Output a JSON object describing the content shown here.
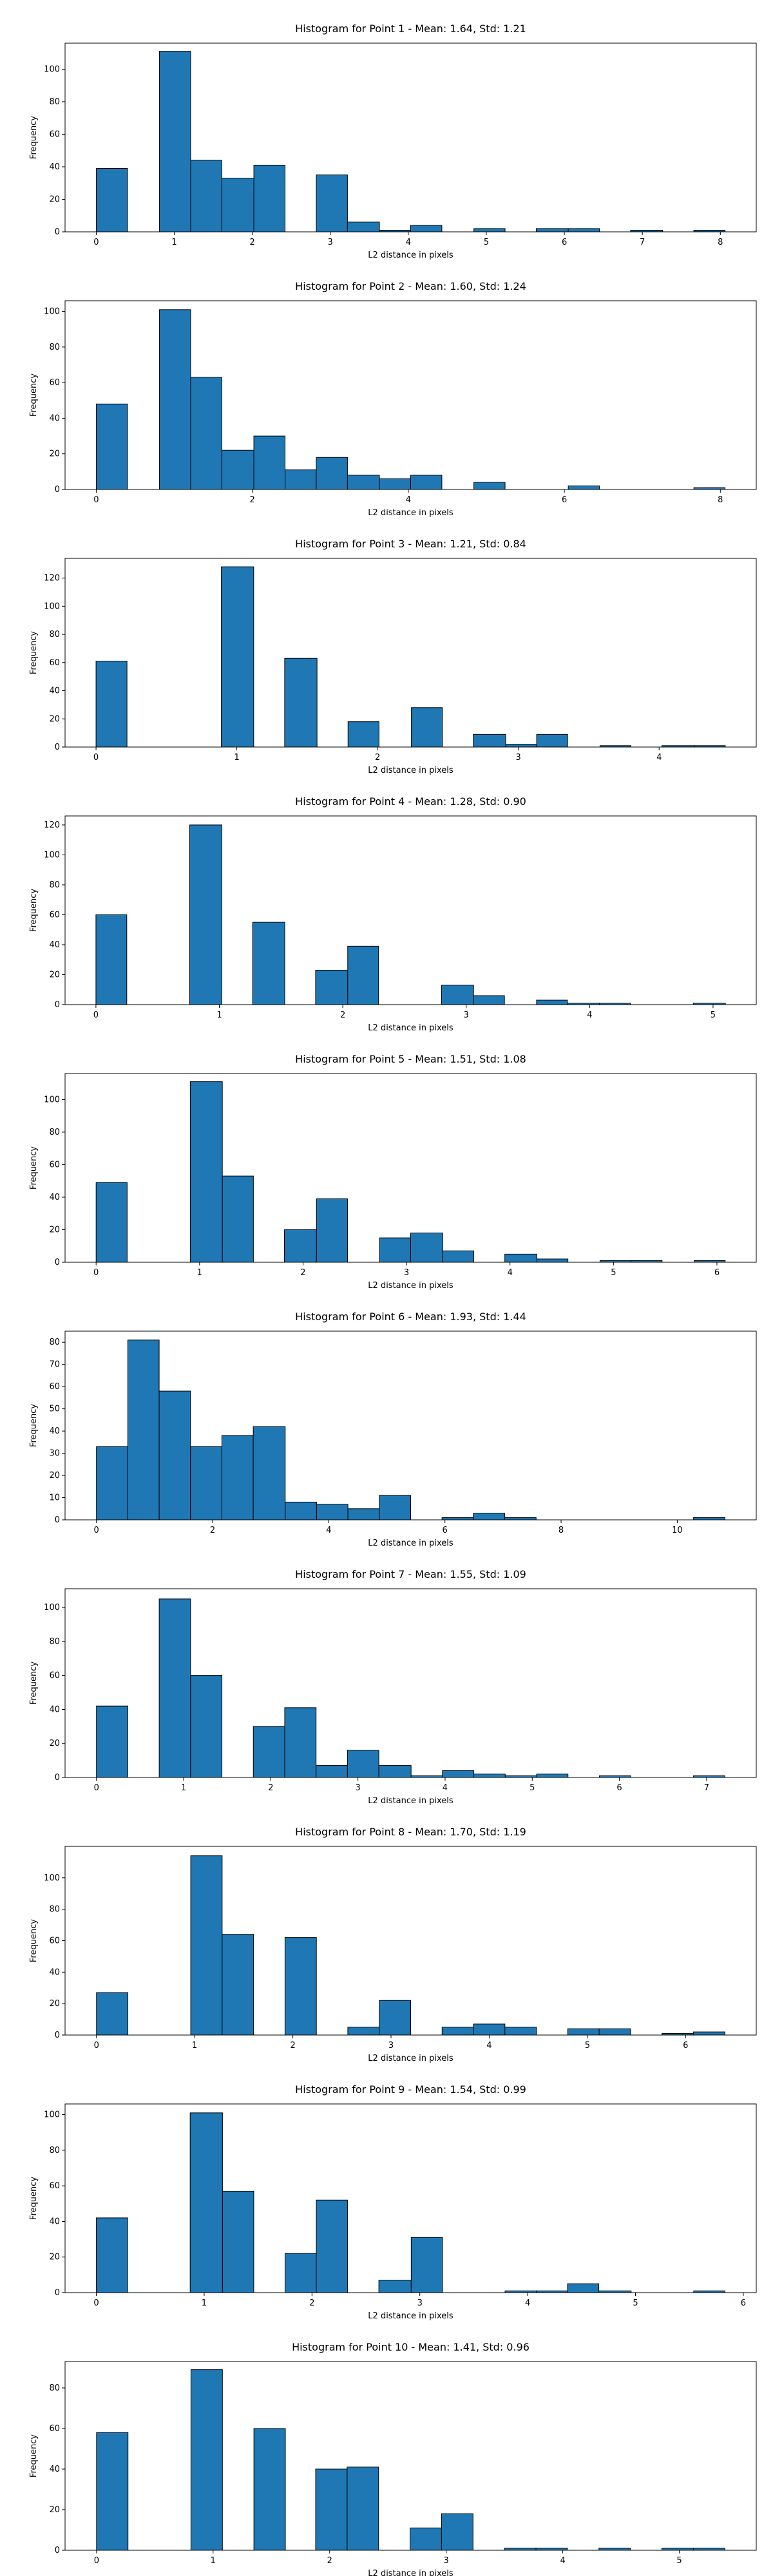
{
  "chart_data": [
    {
      "type": "histogram",
      "title": "Histogram for Point 1 - Mean: 1.64, Std: 1.21",
      "xlabel": "L2 distance in pixels",
      "ylabel": "Frequency",
      "color": "#1f77b4",
      "bins": [
        0,
        0.4,
        0.81,
        1.21,
        1.61,
        2.02,
        2.42,
        2.82,
        3.22,
        3.63,
        4.03,
        4.43,
        4.84,
        5.24,
        5.64,
        6.05,
        6.45,
        6.85,
        7.26,
        7.66,
        8.06
      ],
      "values": [
        39,
        0,
        111,
        44,
        33,
        41,
        0,
        35,
        6,
        1,
        4,
        0,
        2,
        0,
        2,
        2,
        0,
        1,
        0,
        1
      ],
      "xlim": [
        -0.4,
        8.46
      ],
      "ylim": [
        0,
        116
      ],
      "xticks": [
        0,
        1,
        2,
        3,
        4,
        5,
        6,
        7,
        8
      ],
      "yticks": [
        0,
        20,
        40,
        60,
        80,
        100
      ]
    },
    {
      "type": "histogram",
      "title": "Histogram for Point 2 - Mean: 1.60, Std: 1.24",
      "xlabel": "L2 distance in pixels",
      "ylabel": "Frequency",
      "color": "#1f77b4",
      "bins": [
        0,
        0.4,
        0.81,
        1.21,
        1.61,
        2.02,
        2.42,
        2.82,
        3.22,
        3.63,
        4.03,
        4.43,
        4.84,
        5.24,
        5.64,
        6.05,
        6.45,
        6.85,
        7.26,
        7.66,
        8.06
      ],
      "values": [
        48,
        0,
        101,
        63,
        22,
        30,
        11,
        18,
        8,
        6,
        8,
        0,
        4,
        0,
        0,
        2,
        0,
        0,
        0,
        1
      ],
      "xlim": [
        -0.4,
        8.46
      ],
      "ylim": [
        0,
        106
      ],
      "xticks": [
        0,
        2,
        4,
        6,
        8
      ],
      "yticks": [
        0,
        20,
        40,
        60,
        80,
        100
      ]
    },
    {
      "type": "histogram",
      "title": "Histogram for Point 3 - Mean: 1.21, Std: 0.84",
      "xlabel": "L2 distance in pixels",
      "ylabel": "Frequency",
      "color": "#1f77b4",
      "bins": [
        0,
        0.22,
        0.45,
        0.67,
        0.89,
        1.12,
        1.34,
        1.57,
        1.79,
        2.01,
        2.24,
        2.46,
        2.68,
        2.91,
        3.13,
        3.35,
        3.58,
        3.8,
        4.02,
        4.25,
        4.47
      ],
      "values": [
        61,
        0,
        0,
        0,
        128,
        0,
        63,
        0,
        18,
        0,
        28,
        0,
        9,
        2,
        9,
        0,
        1,
        0,
        1,
        1
      ],
      "xlim": [
        -0.22,
        4.69
      ],
      "ylim": [
        0,
        134
      ],
      "xticks": [
        0,
        1,
        2,
        3,
        4
      ],
      "yticks": [
        0,
        20,
        40,
        60,
        80,
        100,
        120
      ]
    },
    {
      "type": "histogram",
      "title": "Histogram for Point 4 - Mean: 1.28, Std: 0.90",
      "xlabel": "L2 distance in pixels",
      "ylabel": "Frequency",
      "color": "#1f77b4",
      "bins": [
        0,
        0.25,
        0.51,
        0.76,
        1.02,
        1.27,
        1.53,
        1.78,
        2.04,
        2.29,
        2.55,
        2.8,
        3.06,
        3.31,
        3.57,
        3.82,
        4.08,
        4.33,
        4.59,
        4.84,
        5.1
      ],
      "values": [
        60,
        0,
        0,
        120,
        0,
        55,
        0,
        23,
        39,
        0,
        0,
        13,
        6,
        0,
        3,
        1,
        1,
        0,
        0,
        1
      ],
      "xlim": [
        -0.25,
        5.35
      ],
      "ylim": [
        0,
        126
      ],
      "xticks": [
        0,
        1,
        2,
        3,
        4,
        5
      ],
      "yticks": [
        0,
        20,
        40,
        60,
        80,
        100,
        120
      ]
    },
    {
      "type": "histogram",
      "title": "Histogram for Point 5 - Mean: 1.51, Std: 1.08",
      "xlabel": "L2 distance in pixels",
      "ylabel": "Frequency",
      "color": "#1f77b4",
      "bins": [
        0,
        0.3,
        0.61,
        0.91,
        1.22,
        1.52,
        1.82,
        2.13,
        2.43,
        2.74,
        3.04,
        3.35,
        3.65,
        3.95,
        4.26,
        4.56,
        4.87,
        5.17,
        5.47,
        5.78,
        6.08
      ],
      "values": [
        49,
        0,
        0,
        111,
        53,
        0,
        20,
        39,
        0,
        15,
        18,
        7,
        0,
        5,
        2,
        0,
        1,
        1,
        0,
        1
      ],
      "xlim": [
        -0.3,
        6.38
      ],
      "ylim": [
        0,
        116
      ],
      "xticks": [
        0,
        1,
        2,
        3,
        4,
        5,
        6
      ],
      "yticks": [
        0,
        20,
        40,
        60,
        80,
        100
      ]
    },
    {
      "type": "histogram",
      "title": "Histogram for Point 6 - Mean: 1.93, Std: 1.44",
      "xlabel": "L2 distance in pixels",
      "ylabel": "Frequency",
      "color": "#1f77b4",
      "bins": [
        0,
        0.54,
        1.08,
        1.62,
        2.16,
        2.7,
        3.25,
        3.79,
        4.33,
        4.87,
        5.41,
        5.95,
        6.49,
        7.03,
        7.57,
        8.11,
        8.65,
        9.19,
        9.74,
        10.28,
        10.82
      ],
      "values": [
        33,
        81,
        58,
        33,
        38,
        42,
        8,
        7,
        5,
        11,
        0,
        1,
        3,
        1,
        0,
        0,
        0,
        0,
        0,
        1
      ],
      "xlim": [
        -0.54,
        11.36
      ],
      "ylim": [
        0,
        85
      ],
      "xticks": [
        0,
        2,
        4,
        6,
        8,
        10
      ],
      "yticks": [
        0,
        10,
        20,
        30,
        40,
        50,
        60,
        70,
        80
      ]
    },
    {
      "type": "histogram",
      "title": "Histogram for Point 7 - Mean: 1.55, Std: 1.09",
      "xlabel": "L2 distance in pixels",
      "ylabel": "Frequency",
      "color": "#1f77b4",
      "bins": [
        0,
        0.36,
        0.72,
        1.08,
        1.44,
        1.8,
        2.16,
        2.52,
        2.88,
        3.24,
        3.61,
        3.97,
        4.33,
        4.69,
        5.05,
        5.41,
        5.77,
        6.13,
        6.49,
        6.85,
        7.21
      ],
      "values": [
        42,
        0,
        105,
        60,
        0,
        30,
        41,
        7,
        16,
        7,
        1,
        4,
        2,
        1,
        2,
        0,
        1,
        0,
        0,
        1
      ],
      "xlim": [
        -0.36,
        7.57
      ],
      "ylim": [
        0,
        111
      ],
      "xticks": [
        0,
        1,
        2,
        3,
        4,
        5,
        6,
        7
      ],
      "yticks": [
        0,
        20,
        40,
        60,
        80,
        100
      ]
    },
    {
      "type": "histogram",
      "title": "Histogram for Point 8 - Mean: 1.70, Std: 1.19",
      "xlabel": "L2 distance in pixels",
      "ylabel": "Frequency",
      "color": "#1f77b4",
      "bins": [
        0,
        0.32,
        0.64,
        0.96,
        1.28,
        1.6,
        1.92,
        2.24,
        2.56,
        2.88,
        3.2,
        3.52,
        3.84,
        4.16,
        4.48,
        4.8,
        5.12,
        5.44,
        5.76,
        6.08,
        6.4
      ],
      "values": [
        27,
        0,
        0,
        114,
        64,
        0,
        62,
        0,
        5,
        22,
        0,
        5,
        7,
        5,
        0,
        4,
        4,
        0,
        1,
        2
      ],
      "xlim": [
        -0.32,
        6.72
      ],
      "ylim": [
        0,
        120
      ],
      "xticks": [
        0,
        1,
        2,
        3,
        4,
        5,
        6
      ],
      "yticks": [
        0,
        20,
        40,
        60,
        80,
        100
      ]
    },
    {
      "type": "histogram",
      "title": "Histogram for Point 9 - Mean: 1.54, Std: 0.99",
      "xlabel": "L2 distance in pixels",
      "ylabel": "Frequency",
      "color": "#1f77b4",
      "bins": [
        0,
        0.29,
        0.58,
        0.87,
        1.17,
        1.46,
        1.75,
        2.04,
        2.33,
        2.62,
        2.92,
        3.21,
        3.5,
        3.79,
        4.08,
        4.37,
        4.66,
        4.96,
        5.25,
        5.54,
        5.83
      ],
      "values": [
        42,
        0,
        0,
        101,
        57,
        0,
        22,
        52,
        0,
        7,
        31,
        0,
        0,
        1,
        1,
        5,
        1,
        0,
        0,
        1
      ],
      "xlim": [
        -0.29,
        6.12
      ],
      "ylim": [
        0,
        106
      ],
      "xticks": [
        0,
        1,
        2,
        3,
        4,
        5,
        6
      ],
      "yticks": [
        0,
        20,
        40,
        60,
        80,
        100
      ]
    },
    {
      "type": "histogram",
      "title": "Histogram for Point 10 - Mean: 1.41, Std: 0.96",
      "xlabel": "L2 distance in pixels",
      "ylabel": "Frequency",
      "color": "#1f77b4",
      "bins": [
        0,
        0.27,
        0.54,
        0.81,
        1.08,
        1.35,
        1.62,
        1.88,
        2.15,
        2.42,
        2.69,
        2.96,
        3.23,
        3.5,
        3.77,
        4.04,
        4.31,
        4.58,
        4.85,
        5.12,
        5.39
      ],
      "values": [
        58,
        0,
        0,
        89,
        0,
        60,
        0,
        40,
        41,
        0,
        11,
        18,
        0,
        1,
        1,
        0,
        1,
        0,
        1,
        1
      ],
      "xlim": [
        -0.27,
        5.66
      ],
      "ylim": [
        0,
        93
      ],
      "xticks": [
        0,
        1,
        2,
        3,
        4,
        5
      ],
      "yticks": [
        0,
        20,
        40,
        60,
        80
      ]
    }
  ]
}
